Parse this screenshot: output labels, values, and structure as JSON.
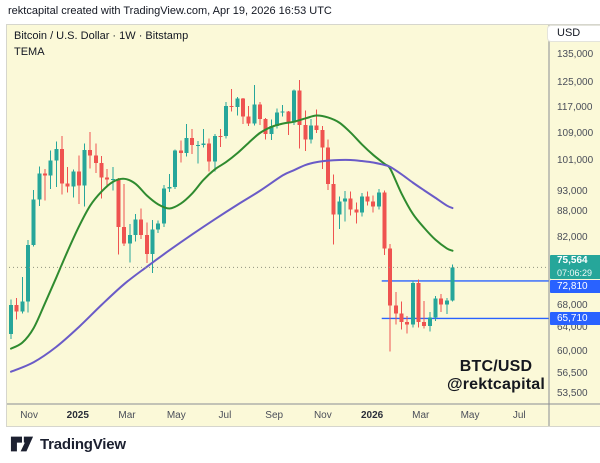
{
  "attribution": "rektcapital created with TradingView.com, Apr 19, 2026 16:53 UTC",
  "legend": {
    "symbol": "Bitcoin / U.S. Dollar · 1W · Bitstamp",
    "indicator": "TEMA"
  },
  "currency_button": "USD",
  "watermark": {
    "line1": "BTC/USD",
    "line2": "@rektcapital"
  },
  "footer": {
    "brand": "TradingView"
  },
  "chart_data": {
    "type": "candlestick",
    "symbol": "BTC/USD",
    "timeframe": "1W",
    "exchange": "Bitstamp",
    "title": "Bitcoin / U.S. Dollar weekly chart with TEMA",
    "grid": false,
    "colors": {
      "background": "#fbf9d8",
      "up": "#26a69a",
      "down": "#ef5350",
      "tema_fast": "#2f8b2f",
      "tema_slow": "#6a5bc7",
      "level": "#2962ff",
      "last_price_label": "#26a69a",
      "axis_text": "#4a4e59",
      "axis_line": "#8a8d93",
      "price_dotted_line": "#9a9d8f"
    },
    "y_axis": {
      "scale": "log",
      "price_at_top": 146700,
      "price_at_bottom": 48960,
      "ticks": [
        {
          "value": 135000,
          "label": "135,000"
        },
        {
          "value": 125000,
          "label": "125,000"
        },
        {
          "value": 117000,
          "label": "117,000"
        },
        {
          "value": 109000,
          "label": "109,000"
        },
        {
          "value": 101000,
          "label": "101,000"
        },
        {
          "value": 93000,
          "label": "93,000"
        },
        {
          "value": 88000,
          "label": "88,000"
        },
        {
          "value": 82000,
          "label": "82,000"
        },
        {
          "value": 68000,
          "label": "68,000"
        },
        {
          "value": 64000,
          "label": "64,000"
        },
        {
          "value": 60000,
          "label": "60,000"
        },
        {
          "value": 56500,
          "label": "56,500"
        },
        {
          "value": 53500,
          "label": "53,500"
        }
      ]
    },
    "x_axis": {
      "labels": [
        {
          "label": "Nov",
          "week": 3.2,
          "bold": false
        },
        {
          "label": "2025",
          "week": 11.8,
          "bold": true
        },
        {
          "label": "Mar",
          "week": 20.5,
          "bold": false
        },
        {
          "label": "May",
          "week": 29.2,
          "bold": false
        },
        {
          "label": "Jul",
          "week": 37.8,
          "bold": false
        },
        {
          "label": "Sep",
          "week": 46.5,
          "bold": false
        },
        {
          "label": "Nov",
          "week": 55.1,
          "bold": false
        },
        {
          "label": "2026",
          "week": 63.8,
          "bold": true
        },
        {
          "label": "Mar",
          "week": 72.4,
          "bold": false
        },
        {
          "label": "May",
          "week": 81.1,
          "bold": false
        },
        {
          "label": "Jul",
          "week": 89.8,
          "bold": false
        }
      ]
    },
    "last_price": {
      "value": 75564,
      "display": "75,564",
      "countdown": "07:06:29"
    },
    "levels": [
      {
        "price": 72810,
        "display": "72,810",
        "start_week": 65.5
      },
      {
        "price": 65710,
        "display": "65,710",
        "start_week": 65.5
      }
    ],
    "candles": [
      [
        63000,
        69200,
        62100,
        68200
      ],
      [
        68200,
        69500,
        65500,
        67000
      ],
      [
        67000,
        73600,
        66600,
        68800
      ],
      [
        68800,
        81400,
        66800,
        80400
      ],
      [
        80400,
        93400,
        80000,
        91000
      ],
      [
        91000,
        99600,
        89400,
        97700
      ],
      [
        97700,
        98900,
        90800,
        97200
      ],
      [
        97200,
        104000,
        93700,
        101200
      ],
      [
        101200,
        106700,
        94200,
        104500
      ],
      [
        104500,
        108300,
        92200,
        95100
      ],
      [
        95100,
        99500,
        92800,
        94300
      ],
      [
        94300,
        98800,
        91500,
        98200
      ],
      [
        98200,
        102700,
        89900,
        94600
      ],
      [
        94600,
        106000,
        89300,
        104200
      ],
      [
        104200,
        109400,
        99000,
        102700
      ],
      [
        102700,
        106000,
        97800,
        100600
      ],
      [
        100600,
        102500,
        91300,
        96600
      ],
      [
        96600,
        98900,
        94000,
        96100
      ],
      [
        96100,
        99500,
        93300,
        96300
      ],
      [
        96300,
        96500,
        78300,
        84400
      ],
      [
        84400,
        95000,
        80100,
        80700
      ],
      [
        80700,
        85100,
        76600,
        82600
      ],
      [
        82600,
        87500,
        81100,
        86100
      ],
      [
        86100,
        88800,
        81700,
        82600
      ],
      [
        82600,
        85500,
        76500,
        78400
      ],
      [
        78400,
        86000,
        74400,
        83800
      ],
      [
        83800,
        85900,
        83000,
        85200
      ],
      [
        85200,
        94700,
        84400,
        93800
      ],
      [
        93800,
        97600,
        92900,
        94200
      ],
      [
        94200,
        104300,
        93600,
        104100
      ],
      [
        104100,
        106900,
        100700,
        103400
      ],
      [
        103400,
        111900,
        102300,
        107700
      ],
      [
        107700,
        110400,
        103100,
        105600
      ],
      [
        105600,
        106800,
        100400,
        105700
      ],
      [
        105700,
        110300,
        104900,
        106000
      ],
      [
        106000,
        107500,
        98200,
        101000
      ],
      [
        101000,
        108800,
        98300,
        108300
      ],
      [
        108300,
        110300,
        105100,
        108200
      ],
      [
        108200,
        118900,
        107500,
        117500
      ],
      [
        117500,
        123200,
        115700,
        117200
      ],
      [
        117200,
        120500,
        114500,
        119900
      ],
      [
        119900,
        120100,
        111900,
        114200
      ],
      [
        114200,
        117600,
        111300,
        112000
      ],
      [
        112000,
        124500,
        111500,
        118000
      ],
      [
        118000,
        118900,
        111600,
        113500
      ],
      [
        113500,
        113800,
        107300,
        108800
      ],
      [
        108800,
        113200,
        107100,
        111200
      ],
      [
        111200,
        116700,
        110500,
        115400
      ],
      [
        115400,
        117900,
        114200,
        115700
      ],
      [
        115700,
        115900,
        108600,
        112400
      ],
      [
        112400,
        123000,
        111600,
        122600
      ],
      [
        122600,
        126200,
        104600,
        111600
      ],
      [
        111600,
        116100,
        103900,
        107200
      ],
      [
        107200,
        113400,
        106000,
        111500
      ],
      [
        111500,
        116400,
        109100,
        110100
      ],
      [
        110100,
        111200,
        98900,
        104900
      ],
      [
        104900,
        107300,
        93400,
        95000
      ],
      [
        95000,
        97500,
        80500,
        87300
      ],
      [
        87300,
        91700,
        83900,
        90500
      ],
      [
        90500,
        93200,
        85700,
        91200
      ],
      [
        91200,
        93000,
        87100,
        88600
      ],
      [
        88600,
        90200,
        85200,
        87800
      ],
      [
        87800,
        92600,
        86900,
        91700
      ],
      [
        91700,
        93000,
        89500,
        90500
      ],
      [
        90500,
        92000,
        87800,
        89300
      ],
      [
        89300,
        93600,
        88600,
        92800
      ],
      [
        92800,
        93300,
        78200,
        79600
      ],
      [
        79600,
        80600,
        60000,
        68100
      ],
      [
        68100,
        70600,
        64600,
        66600
      ],
      [
        66600,
        68800,
        63800,
        65100
      ],
      [
        65100,
        66200,
        63100,
        64600
      ],
      [
        64600,
        72800,
        64100,
        72400
      ],
      [
        72400,
        73100,
        64100,
        65100
      ],
      [
        65100,
        68900,
        63900,
        64400
      ],
      [
        64400,
        66900,
        63400,
        65900
      ],
      [
        65900,
        69900,
        65300,
        69400
      ],
      [
        69400,
        70300,
        66900,
        68300
      ],
      [
        68300,
        69500,
        66500,
        69000
      ],
      [
        69000,
        76200,
        68800,
        75564
      ]
    ],
    "series": [
      {
        "name": "TEMA fast (green)",
        "points": [
          [
            0,
            60500
          ],
          [
            2,
            61500
          ],
          [
            4,
            64000
          ],
          [
            6,
            68500
          ],
          [
            8,
            73500
          ],
          [
            10,
            79000
          ],
          [
            12,
            84500
          ],
          [
            14,
            89500
          ],
          [
            16,
            93000
          ],
          [
            18,
            95500
          ],
          [
            20,
            96300
          ],
          [
            22,
            95000
          ],
          [
            24,
            92000
          ],
          [
            26,
            89800
          ],
          [
            28,
            88800
          ],
          [
            30,
            90000
          ],
          [
            32,
            92500
          ],
          [
            34,
            96000
          ],
          [
            36,
            98800
          ],
          [
            38,
            100800
          ],
          [
            40,
            103300
          ],
          [
            42,
            106300
          ],
          [
            44,
            109200
          ],
          [
            46,
            111000
          ],
          [
            48,
            112000
          ],
          [
            50,
            112600
          ],
          [
            52,
            113600
          ],
          [
            54,
            114500
          ],
          [
            56,
            113900
          ],
          [
            58,
            112300
          ],
          [
            60,
            109300
          ],
          [
            62,
            105800
          ],
          [
            64,
            102800
          ],
          [
            66,
            100300
          ],
          [
            67,
            99000
          ],
          [
            69,
            92500
          ],
          [
            71,
            87500
          ],
          [
            73,
            84200
          ],
          [
            75,
            81500
          ],
          [
            77,
            79600
          ],
          [
            78,
            79100
          ]
        ]
      },
      {
        "name": "TEMA slow (purple)",
        "points": [
          [
            0,
            56800
          ],
          [
            4,
            58300
          ],
          [
            8,
            60800
          ],
          [
            12,
            64200
          ],
          [
            16,
            68200
          ],
          [
            20,
            72200
          ],
          [
            24,
            75700
          ],
          [
            28,
            79200
          ],
          [
            32,
            82700
          ],
          [
            36,
            86200
          ],
          [
            40,
            89700
          ],
          [
            44,
            93200
          ],
          [
            48,
            97200
          ],
          [
            50,
            98600
          ],
          [
            52,
            100000
          ],
          [
            54,
            100800
          ],
          [
            56,
            101200
          ],
          [
            58,
            101400
          ],
          [
            60,
            101400
          ],
          [
            62,
            101100
          ],
          [
            64,
            100700
          ],
          [
            66,
            100000
          ],
          [
            67,
            99500
          ],
          [
            69,
            97500
          ],
          [
            71,
            95300
          ],
          [
            73,
            93300
          ],
          [
            75,
            91400
          ],
          [
            77,
            89500
          ],
          [
            78,
            88900
          ]
        ]
      }
    ]
  }
}
